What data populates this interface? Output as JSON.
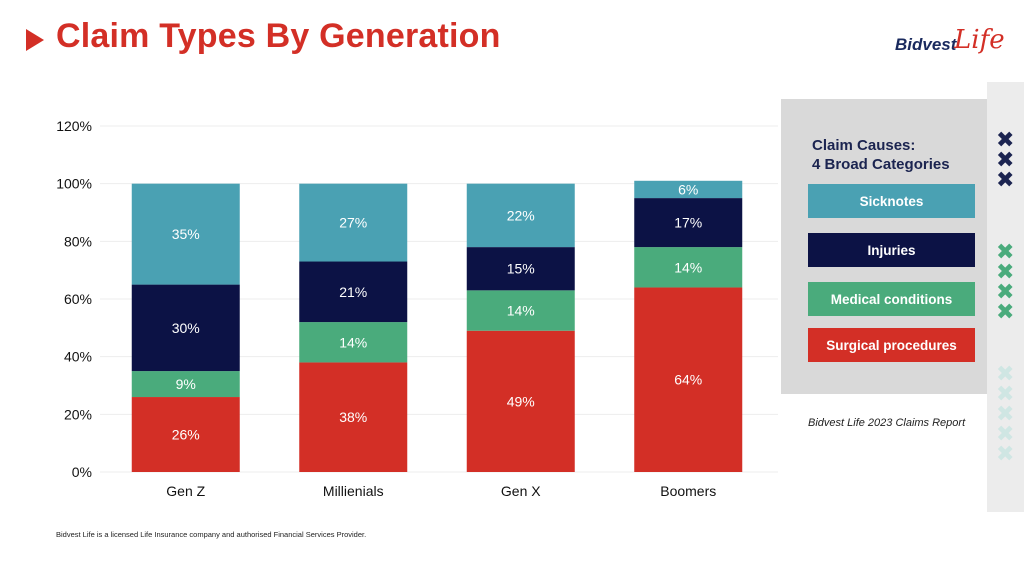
{
  "header": {
    "title": "Claim Types By Generation"
  },
  "logo": {
    "word1": "Bidvest",
    "word2": "Life"
  },
  "legend": {
    "title_line1": "Claim Causes:",
    "title_line2": "4 Broad Categories",
    "items": [
      {
        "label": "Sicknotes",
        "color": "#4aa1b3"
      },
      {
        "label": "Injuries",
        "color": "#0c1245"
      },
      {
        "label": "Medical conditions",
        "color": "#4aab7c"
      },
      {
        "label": "Surgical procedures",
        "color": "#d32f26"
      }
    ]
  },
  "source_note": "Bidvest Life 2023 Claims Report",
  "footer": "Bidvest Life is a licensed Life Insurance company and authorised Financial Services Provider.",
  "decor": {
    "cross_glyph": "✖",
    "colors": [
      "#1b2450",
      "#4aab7c",
      "#cfe6e3"
    ]
  },
  "chart_data": {
    "type": "bar",
    "stacked": true,
    "categories": [
      "Gen Z",
      "Millienials",
      "Gen X",
      "Boomers"
    ],
    "series": [
      {
        "name": "Surgical procedures",
        "color": "#d32f26",
        "values": [
          26,
          38,
          49,
          64
        ],
        "labels": [
          "26%",
          "38%",
          "49%",
          "64%"
        ]
      },
      {
        "name": "Medical conditions",
        "color": "#4aab7c",
        "values": [
          9,
          14,
          14,
          14
        ],
        "labels": [
          "9%",
          "14%",
          "14%",
          "14%"
        ]
      },
      {
        "name": "Injuries",
        "color": "#0c1245",
        "values": [
          30,
          21,
          15,
          17
        ],
        "labels": [
          "30%",
          "21%",
          "15%",
          "17%"
        ]
      },
      {
        "name": "Sicknotes",
        "color": "#4aa1b3",
        "values": [
          35,
          27,
          22,
          6
        ],
        "labels": [
          "35%",
          "27%",
          "22%",
          "6%"
        ]
      }
    ],
    "yticks": [
      "0%",
      "20%",
      "40%",
      "60%",
      "80%",
      "100%",
      "120%"
    ],
    "ylim": [
      0,
      120
    ],
    "grid": true,
    "legend": "right"
  }
}
